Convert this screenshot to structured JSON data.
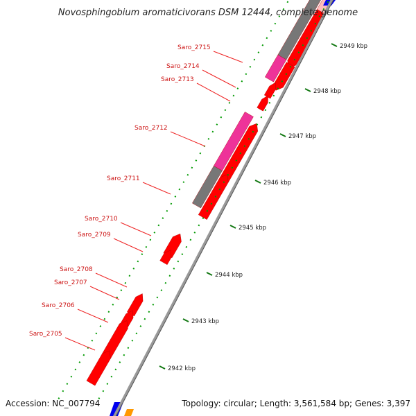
{
  "title": "Novosphingobium aromaticivorans DSM 12444, complete genome",
  "accession": "Accession: NC_007794",
  "topology": "Topology: circular; Length: 3,561,584 bp; Genes: 3,397",
  "colors": {
    "gene_red": "#ff0000",
    "gene_magenta": "#ee3399",
    "gene_gray": "#777777",
    "gene_pink": "#ffbbbb",
    "tick_green": "#009900",
    "label_red": "#cc1111",
    "leader_red": "#ee2222",
    "backbone": "#999999",
    "blue": "#0000ee",
    "orange": "#ff9900"
  },
  "gene_labels": [
    {
      "name": "Saro_2715"
    },
    {
      "name": "Saro_2714"
    },
    {
      "name": "Saro_2713"
    },
    {
      "name": "Saro_2712"
    },
    {
      "name": "Saro_2711"
    },
    {
      "name": "Saro_2710"
    },
    {
      "name": "Saro_2709"
    },
    {
      "name": "Saro_2708"
    },
    {
      "name": "Saro_2707"
    },
    {
      "name": "Saro_2706"
    },
    {
      "name": "Saro_2705"
    }
  ],
  "kbp_labels": [
    {
      "text": "2949 kbp"
    },
    {
      "text": "2948 kbp"
    },
    {
      "text": "2947 kbp"
    },
    {
      "text": "2946 kbp"
    },
    {
      "text": "2945 kbp"
    },
    {
      "text": "2944 kbp"
    },
    {
      "text": "2943 kbp"
    },
    {
      "text": "2942 kbp"
    }
  ]
}
